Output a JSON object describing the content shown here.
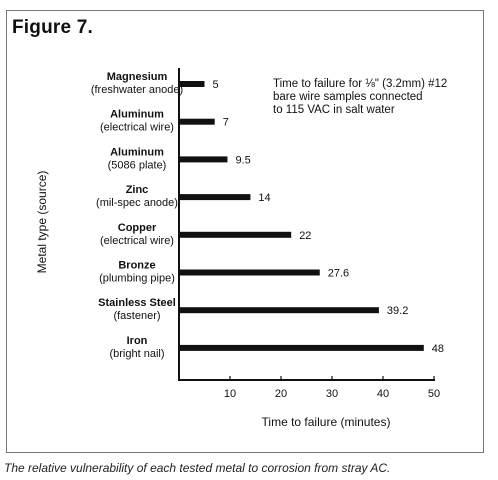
{
  "figure": {
    "title": "Figure 7.",
    "caption": "The relative vulnerability of each tested metal to corrosion from stray AC.",
    "note_lines": [
      "Time to failure for ⅛\" (3.2mm) #12",
      "bare wire samples connected",
      "to 115 VAC in salt water"
    ]
  },
  "chart_data": {
    "type": "bar",
    "orientation": "horizontal",
    "categories": [
      [
        "Magnesium",
        "(freshwater anode)"
      ],
      [
        "Aluminum",
        "(electrical wire)"
      ],
      [
        "Aluminum",
        "(5086 plate)"
      ],
      [
        "Zinc",
        "(mil-spec anode)"
      ],
      [
        "Copper",
        "(electrical wire)"
      ],
      [
        "Bronze",
        "(plumbing pipe)"
      ],
      [
        "Stainless Steel",
        "(fastener)"
      ],
      [
        "Iron",
        "(bright nail)"
      ]
    ],
    "values": [
      5,
      7,
      9.5,
      14,
      22,
      27.6,
      39.2,
      48
    ],
    "value_labels": [
      "5",
      "7",
      "9.5",
      "14",
      "22",
      "27.6",
      "39.2",
      "48"
    ],
    "xlabel": "Time to failure (minutes)",
    "ylabel": "Metal type (source)",
    "xlim": [
      0,
      50
    ],
    "xticks": [
      "10",
      "20",
      "30",
      "40",
      "50"
    ],
    "grid": false,
    "bar_color": "#111111"
  }
}
